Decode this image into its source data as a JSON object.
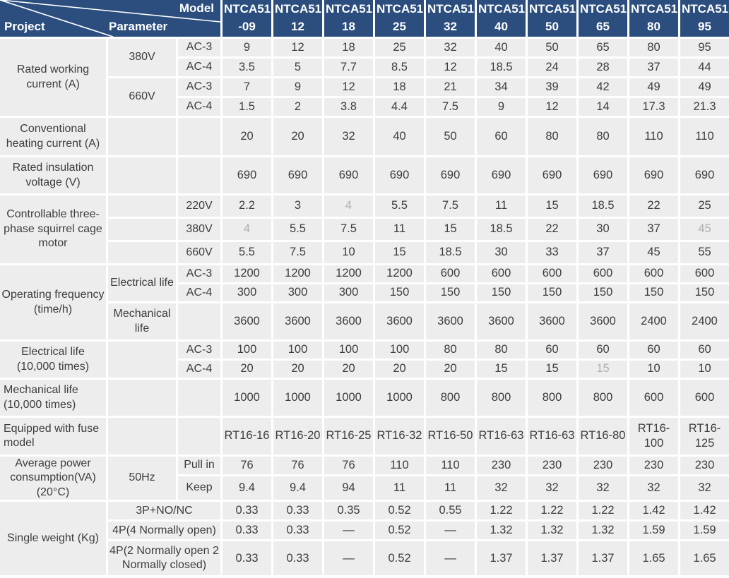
{
  "colors": {
    "header_bg": "#2B4E7E",
    "header_text": "#FFFFFF",
    "cell_bg": "#EDEDED",
    "text": "#3D3D3D",
    "muted_text": "#AFAFAF",
    "gap": "#FFFFFF"
  },
  "header": {
    "project_label": "Project",
    "parameter_label": "Parameter",
    "model_label": "Model",
    "models": [
      {
        "line1": "NTCA51",
        "line2": "-09"
      },
      {
        "line1": "NTCA51",
        "line2": "12"
      },
      {
        "line1": "NTCA51",
        "line2": "18"
      },
      {
        "line1": "NTCA51",
        "line2": "25"
      },
      {
        "line1": "NTCA51",
        "line2": "32"
      },
      {
        "line1": "NTCA51",
        "line2": "40"
      },
      {
        "line1": "NTCA51",
        "line2": "50"
      },
      {
        "line1": "NTCA51",
        "line2": "65"
      },
      {
        "line1": "NTCA51",
        "line2": "80"
      },
      {
        "line1": "NTCA51",
        "line2": "95"
      }
    ]
  },
  "rows": [
    {
      "project": {
        "text": "Rated working current (A)",
        "rowspan": 4
      },
      "param": {
        "text": "380V",
        "rowspan": 2
      },
      "sub": {
        "text": "AC-3"
      },
      "values": [
        "9",
        "12",
        "18",
        "25",
        "32",
        "40",
        "50",
        "65",
        "80",
        "95"
      ]
    },
    {
      "sub": {
        "text": "AC-4"
      },
      "values": [
        "3.5",
        "5",
        "7.7",
        "8.5",
        "12",
        "18.5",
        "24",
        "28",
        "37",
        "44"
      ]
    },
    {
      "param": {
        "text": "660V",
        "rowspan": 2
      },
      "sub": {
        "text": "AC-3"
      },
      "values": [
        "7",
        "9",
        "12",
        "18",
        "21",
        "34",
        "39",
        "42",
        "49",
        "49"
      ]
    },
    {
      "sub": {
        "text": "AC-4"
      },
      "values": [
        "1.5",
        "2",
        "3.8",
        "4.4",
        "7.5",
        "9",
        "12",
        "14",
        "17.3",
        "21.3"
      ]
    },
    {
      "project": {
        "text": "Conventional heating current (A)"
      },
      "param": {
        "text": ""
      },
      "sub": {
        "text": ""
      },
      "values": [
        "20",
        "20",
        "32",
        "40",
        "50",
        "60",
        "80",
        "80",
        "110",
        "110"
      ]
    },
    {
      "project": {
        "text": "Rated insulation voltage (V)"
      },
      "param": {
        "text": ""
      },
      "sub": {
        "text": ""
      },
      "values": [
        "690",
        "690",
        "690",
        "690",
        "690",
        "690",
        "690",
        "690",
        "690",
        "690"
      ]
    },
    {
      "project": {
        "text": "Controllable three-phase squirrel cage motor",
        "rowspan": 3
      },
      "param": {
        "text": ""
      },
      "sub": {
        "text": "220V"
      },
      "values": [
        "2.2",
        "3",
        "4",
        "5.5",
        "7.5",
        "11",
        "15",
        "18.5",
        "22",
        "25"
      ],
      "muted": [
        2
      ]
    },
    {
      "param": {
        "text": ""
      },
      "sub": {
        "text": "380V"
      },
      "values": [
        "4",
        "5.5",
        "7.5",
        "11",
        "15",
        "18.5",
        "22",
        "30",
        "37",
        "45"
      ],
      "muted": [
        0,
        9
      ]
    },
    {
      "param": {
        "text": ""
      },
      "sub": {
        "text": "660V"
      },
      "values": [
        "5.5",
        "7.5",
        "10",
        "15",
        "18.5",
        "30",
        "33",
        "37",
        "45",
        "55"
      ]
    },
    {
      "project": {
        "text": "Operating frequency (time/h)",
        "rowspan": 3
      },
      "param": {
        "text": "Electrical life",
        "rowspan": 2
      },
      "sub": {
        "text": "AC-3"
      },
      "values": [
        "1200",
        "1200",
        "1200",
        "1200",
        "600",
        "600",
        "600",
        "600",
        "600",
        "600"
      ]
    },
    {
      "sub": {
        "text": "AC-4"
      },
      "values": [
        "300",
        "300",
        "300",
        "150",
        "150",
        "150",
        "150",
        "150",
        "150",
        "150"
      ]
    },
    {
      "param": {
        "text": "Mechanical life"
      },
      "sub": {
        "text": ""
      },
      "values": [
        "3600",
        "3600",
        "3600",
        "3600",
        "3600",
        "3600",
        "3600",
        "3600",
        "2400",
        "2400"
      ]
    },
    {
      "project": {
        "text": "Electrical life (10,000 times)",
        "rowspan": 2
      },
      "param": {
        "text": "",
        "rowspan": 2
      },
      "sub": {
        "text": "AC-3"
      },
      "values": [
        "100",
        "100",
        "100",
        "100",
        "80",
        "80",
        "60",
        "60",
        "60",
        "60"
      ]
    },
    {
      "sub": {
        "text": "AC-4"
      },
      "values": [
        "20",
        "20",
        "20",
        "20",
        "20",
        "15",
        "15",
        "15",
        "10",
        "10"
      ],
      "muted": [
        7
      ]
    },
    {
      "project": {
        "text": "Mechanical life (10,000 times)",
        "align": "left"
      },
      "param": {
        "text": ""
      },
      "sub": {
        "text": ""
      },
      "values": [
        "1000",
        "1000",
        "1000",
        "1000",
        "800",
        "800",
        "800",
        "800",
        "600",
        "600"
      ]
    },
    {
      "project": {
        "text": "Equipped with fuse model",
        "align": "left"
      },
      "param": {
        "text": ""
      },
      "sub": {
        "text": ""
      },
      "values": [
        "RT16-16",
        "RT16-20",
        "RT16-25",
        "RT16-32",
        "RT16-50",
        "RT16-63",
        "RT16-63",
        "RT16-80",
        "RT16-100",
        "RT16-125"
      ]
    },
    {
      "project": {
        "text": "Average power consumption(VA) (20°C)",
        "rowspan": 2
      },
      "param": {
        "text": "50Hz",
        "rowspan": 2
      },
      "sub": {
        "text": "Pull in"
      },
      "values": [
        "76",
        "76",
        "76",
        "110",
        "110",
        "230",
        "230",
        "230",
        "230",
        "230"
      ]
    },
    {
      "sub": {
        "text": "Keep"
      },
      "values": [
        "9.4",
        "9.4",
        "94",
        "11",
        "11",
        "32",
        "32",
        "32",
        "32",
        "32"
      ]
    },
    {
      "project": {
        "text": "Single weight (Kg)",
        "rowspan": 3
      },
      "param": {
        "text": "3P+NO/NC",
        "colspan": 2
      },
      "values": [
        "0.33",
        "0.33",
        "0.35",
        "0.52",
        "0.55",
        "1.22",
        "1.22",
        "1.22",
        "1.42",
        "1.42"
      ]
    },
    {
      "param": {
        "text": "4P(4 Normally open)",
        "colspan": 2
      },
      "values": [
        "0.33",
        "0.33",
        "—",
        "0.52",
        "—",
        "1.32",
        "1.32",
        "1.32",
        "1.59",
        "1.59"
      ]
    },
    {
      "param": {
        "text": "4P(2 Normally open 2 Normally closed)",
        "colspan": 2
      },
      "values": [
        "0.33",
        "0.33",
        "—",
        "0.52",
        "—",
        "1.37",
        "1.37",
        "1.37",
        "1.65",
        "1.65"
      ]
    }
  ]
}
